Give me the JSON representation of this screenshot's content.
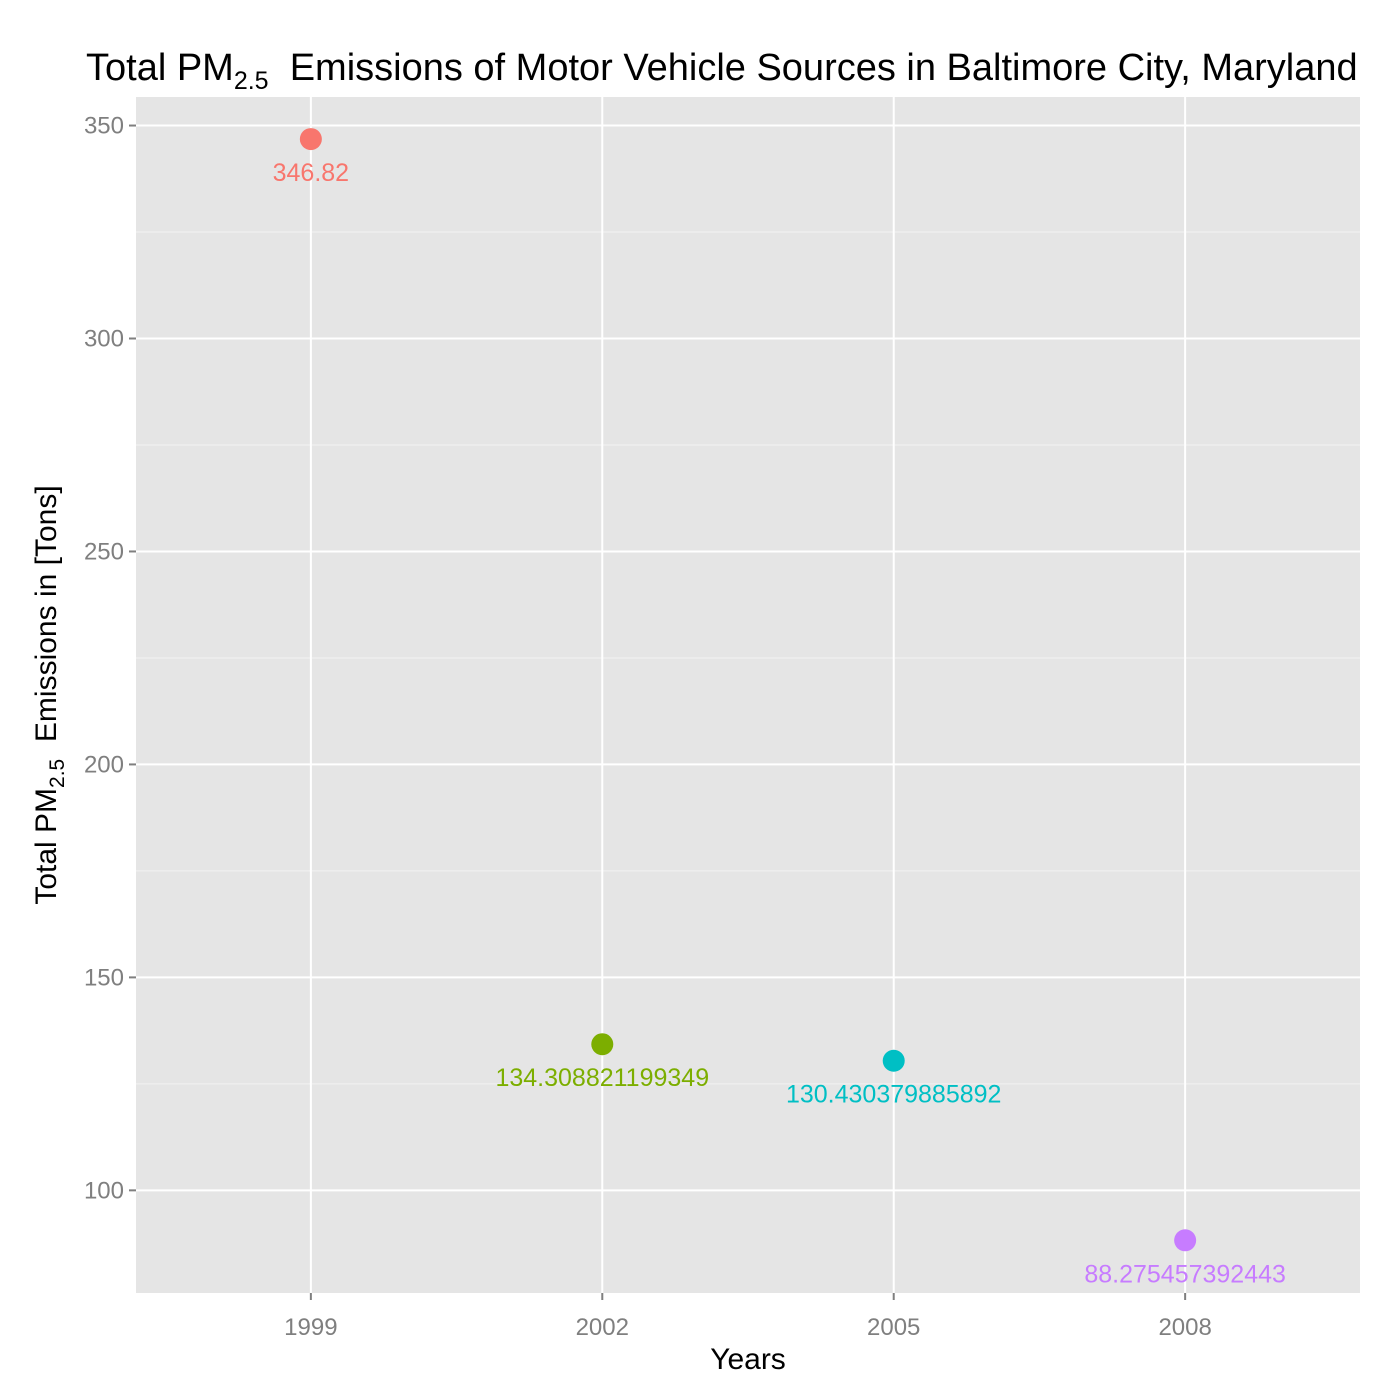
{
  "chart_data": {
    "type": "scatter",
    "title_parts": {
      "prefix": "Total PM",
      "subscript": "2.5",
      "suffix": "  Emissions of Motor Vehicle Sources in Baltimore City, Maryland"
    },
    "xlabel": "Years",
    "ylabel_parts": {
      "prefix": "Total PM",
      "subscript": "2.5",
      "suffix": "  Emissions in [Tons]"
    },
    "categories": [
      "1999",
      "2002",
      "2005",
      "2008"
    ],
    "values": [
      346.82,
      134.308821199349,
      130.430379885892,
      88.275457392443
    ],
    "point_labels": [
      "346.82",
      "134.308821199349",
      "130.430379885892",
      "88.275457392443"
    ],
    "colors": [
      "#F8766D",
      "#7CAE00",
      "#00BFC4",
      "#C77CFF"
    ],
    "ylim": [
      75.9,
      356.7
    ],
    "y_ticks": [
      100,
      150,
      200,
      250,
      300,
      350
    ],
    "y_tick_labels": [
      "100",
      "150",
      "200",
      "250",
      "300",
      "350"
    ],
    "grid": true,
    "panel_background": "#E5E5E5",
    "grid_color": "#FFFFFF"
  }
}
